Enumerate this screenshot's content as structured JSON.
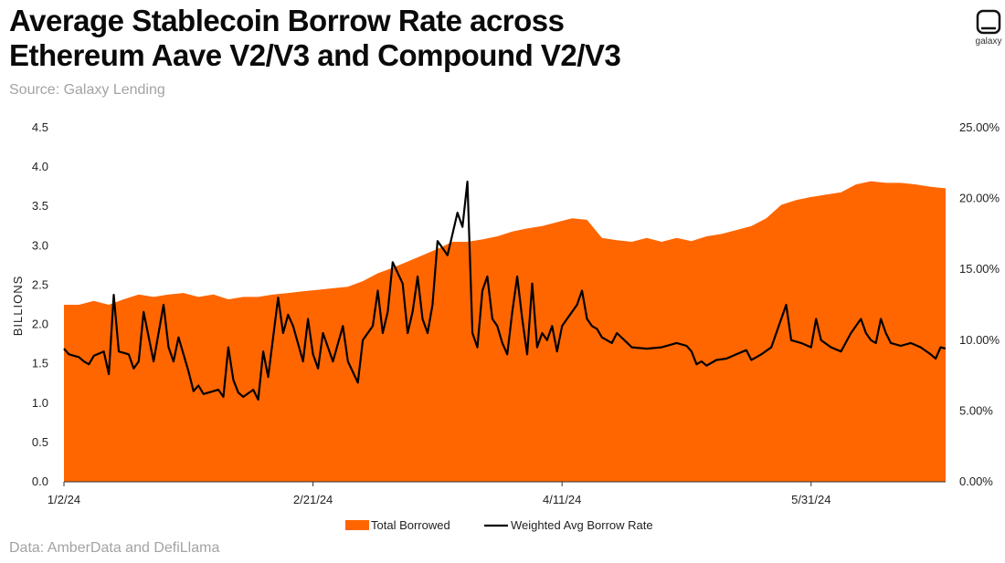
{
  "header": {
    "title_line1": "Average Stablecoin Borrow Rate across",
    "title_line2": "Ethereum Aave V2/V3 and Compound V2/V3",
    "subtitle": "Source: Galaxy Lending"
  },
  "logo": {
    "text": "galaxy"
  },
  "footer": {
    "text": "Data: AmberData and DefiLlama"
  },
  "colors": {
    "area": "#ff6600",
    "line": "#000000",
    "axis": "#222222"
  },
  "chart_data": {
    "type": "area",
    "title": "Average Stablecoin Borrow Rate across Ethereum Aave V2/V3 and Compound V2/V3",
    "ylabel": "BILLIONS",
    "ylim": [
      0,
      4.5
    ],
    "y2lim": [
      0,
      25
    ],
    "yticks": [
      "0.0",
      "0.5",
      "1.0",
      "1.5",
      "2.0",
      "2.5",
      "3.0",
      "3.5",
      "4.0",
      "4.5"
    ],
    "y2ticks": [
      "0.00%",
      "5.00%",
      "10.00%",
      "15.00%",
      "20.00%",
      "25.00%"
    ],
    "xticks": [
      "1/2/24",
      "2/21/24",
      "4/11/24",
      "5/31/24"
    ],
    "x_start": "2024-01-02",
    "x_end": "2024-06-27",
    "legend_position": "bottom",
    "series": [
      {
        "name": "Total Borrowed",
        "kind": "area",
        "axis": "left",
        "points": [
          [
            "2024-01-02",
            2.25
          ],
          [
            "2024-01-05",
            2.25
          ],
          [
            "2024-01-08",
            2.3
          ],
          [
            "2024-01-11",
            2.25
          ],
          [
            "2024-01-14",
            2.32
          ],
          [
            "2024-01-17",
            2.38
          ],
          [
            "2024-01-20",
            2.35
          ],
          [
            "2024-01-23",
            2.38
          ],
          [
            "2024-01-26",
            2.4
          ],
          [
            "2024-01-29",
            2.35
          ],
          [
            "2024-02-01",
            2.38
          ],
          [
            "2024-02-04",
            2.32
          ],
          [
            "2024-02-07",
            2.35
          ],
          [
            "2024-02-10",
            2.35
          ],
          [
            "2024-02-13",
            2.38
          ],
          [
            "2024-02-16",
            2.4
          ],
          [
            "2024-02-19",
            2.42
          ],
          [
            "2024-02-22",
            2.44
          ],
          [
            "2024-02-25",
            2.46
          ],
          [
            "2024-02-28",
            2.48
          ],
          [
            "2024-03-02",
            2.55
          ],
          [
            "2024-03-05",
            2.65
          ],
          [
            "2024-03-08",
            2.72
          ],
          [
            "2024-03-11",
            2.8
          ],
          [
            "2024-03-14",
            2.88
          ],
          [
            "2024-03-17",
            2.96
          ],
          [
            "2024-03-20",
            3.05
          ],
          [
            "2024-03-23",
            3.05
          ],
          [
            "2024-03-26",
            3.08
          ],
          [
            "2024-03-29",
            3.12
          ],
          [
            "2024-04-01",
            3.18
          ],
          [
            "2024-04-04",
            3.22
          ],
          [
            "2024-04-07",
            3.25
          ],
          [
            "2024-04-10",
            3.3
          ],
          [
            "2024-04-13",
            3.35
          ],
          [
            "2024-04-16",
            3.33
          ],
          [
            "2024-04-19",
            3.1
          ],
          [
            "2024-04-22",
            3.07
          ],
          [
            "2024-04-25",
            3.05
          ],
          [
            "2024-04-28",
            3.1
          ],
          [
            "2024-05-01",
            3.05
          ],
          [
            "2024-05-04",
            3.1
          ],
          [
            "2024-05-07",
            3.06
          ],
          [
            "2024-05-10",
            3.12
          ],
          [
            "2024-05-13",
            3.15
          ],
          [
            "2024-05-16",
            3.2
          ],
          [
            "2024-05-19",
            3.25
          ],
          [
            "2024-05-22",
            3.35
          ],
          [
            "2024-05-25",
            3.52
          ],
          [
            "2024-05-28",
            3.58
          ],
          [
            "2024-05-31",
            3.62
          ],
          [
            "2024-06-03",
            3.65
          ],
          [
            "2024-06-06",
            3.68
          ],
          [
            "2024-06-09",
            3.78
          ],
          [
            "2024-06-12",
            3.82
          ],
          [
            "2024-06-15",
            3.8
          ],
          [
            "2024-06-18",
            3.8
          ],
          [
            "2024-06-21",
            3.78
          ],
          [
            "2024-06-24",
            3.75
          ],
          [
            "2024-06-27",
            3.73
          ]
        ]
      },
      {
        "name": "Weighted Avg Borrow Rate",
        "kind": "line",
        "axis": "right",
        "points": [
          [
            "2024-01-02",
            9.4
          ],
          [
            "2024-01-03",
            9.0
          ],
          [
            "2024-01-05",
            8.8
          ],
          [
            "2024-01-06",
            8.5
          ],
          [
            "2024-01-07",
            8.3
          ],
          [
            "2024-01-08",
            8.9
          ],
          [
            "2024-01-10",
            9.2
          ],
          [
            "2024-01-11",
            7.6
          ],
          [
            "2024-01-12",
            13.2
          ],
          [
            "2024-01-13",
            9.2
          ],
          [
            "2024-01-15",
            9.0
          ],
          [
            "2024-01-16",
            8.0
          ],
          [
            "2024-01-17",
            8.5
          ],
          [
            "2024-01-18",
            12.0
          ],
          [
            "2024-01-20",
            8.5
          ],
          [
            "2024-01-22",
            12.5
          ],
          [
            "2024-01-23",
            9.5
          ],
          [
            "2024-01-24",
            8.5
          ],
          [
            "2024-01-25",
            10.2
          ],
          [
            "2024-01-27",
            7.8
          ],
          [
            "2024-01-28",
            6.4
          ],
          [
            "2024-01-29",
            6.8
          ],
          [
            "2024-01-30",
            6.2
          ],
          [
            "2024-02-01",
            6.4
          ],
          [
            "2024-02-02",
            6.5
          ],
          [
            "2024-02-03",
            6.0
          ],
          [
            "2024-02-04",
            9.5
          ],
          [
            "2024-02-05",
            7.2
          ],
          [
            "2024-02-06",
            6.3
          ],
          [
            "2024-02-07",
            6.0
          ],
          [
            "2024-02-09",
            6.5
          ],
          [
            "2024-02-10",
            5.8
          ],
          [
            "2024-02-11",
            9.2
          ],
          [
            "2024-02-12",
            7.4
          ],
          [
            "2024-02-14",
            13.0
          ],
          [
            "2024-02-15",
            10.5
          ],
          [
            "2024-02-16",
            11.8
          ],
          [
            "2024-02-17",
            11.0
          ],
          [
            "2024-02-19",
            8.5
          ],
          [
            "2024-02-20",
            11.5
          ],
          [
            "2024-02-21",
            9.0
          ],
          [
            "2024-02-22",
            8.0
          ],
          [
            "2024-02-23",
            10.5
          ],
          [
            "2024-02-25",
            8.5
          ],
          [
            "2024-02-27",
            11.0
          ],
          [
            "2024-02-28",
            8.5
          ],
          [
            "2024-03-01",
            7.0
          ],
          [
            "2024-03-02",
            10.0
          ],
          [
            "2024-03-04",
            11.0
          ],
          [
            "2024-03-05",
            13.5
          ],
          [
            "2024-03-06",
            10.5
          ],
          [
            "2024-03-07",
            12.0
          ],
          [
            "2024-03-08",
            15.5
          ],
          [
            "2024-03-10",
            14.0
          ],
          [
            "2024-03-11",
            10.5
          ],
          [
            "2024-03-12",
            12.0
          ],
          [
            "2024-03-13",
            14.5
          ],
          [
            "2024-03-14",
            11.5
          ],
          [
            "2024-03-15",
            10.5
          ],
          [
            "2024-03-16",
            12.5
          ],
          [
            "2024-03-17",
            17.0
          ],
          [
            "2024-03-18",
            16.5
          ],
          [
            "2024-03-19",
            16.0
          ],
          [
            "2024-03-20",
            17.5
          ],
          [
            "2024-03-21",
            19.0
          ],
          [
            "2024-03-22",
            18.0
          ],
          [
            "2024-03-23",
            21.2
          ],
          [
            "2024-03-24",
            10.5
          ],
          [
            "2024-03-25",
            9.5
          ],
          [
            "2024-03-26",
            13.5
          ],
          [
            "2024-03-27",
            14.5
          ],
          [
            "2024-03-28",
            11.5
          ],
          [
            "2024-03-29",
            11.0
          ],
          [
            "2024-03-30",
            9.8
          ],
          [
            "2024-03-31",
            9.0
          ],
          [
            "2024-04-01",
            12.0
          ],
          [
            "2024-04-02",
            14.5
          ],
          [
            "2024-04-03",
            11.5
          ],
          [
            "2024-04-04",
            9.0
          ],
          [
            "2024-04-05",
            14.0
          ],
          [
            "2024-04-06",
            9.5
          ],
          [
            "2024-04-07",
            10.5
          ],
          [
            "2024-04-08",
            10.0
          ],
          [
            "2024-04-09",
            11.0
          ],
          [
            "2024-04-10",
            9.2
          ],
          [
            "2024-04-11",
            11.0
          ],
          [
            "2024-04-12",
            11.5
          ],
          [
            "2024-04-13",
            12.0
          ],
          [
            "2024-04-14",
            12.5
          ],
          [
            "2024-04-15",
            13.5
          ],
          [
            "2024-04-16",
            11.5
          ],
          [
            "2024-04-17",
            11.0
          ],
          [
            "2024-04-18",
            10.8
          ],
          [
            "2024-04-19",
            10.2
          ],
          [
            "2024-04-20",
            10.0
          ],
          [
            "2024-04-21",
            9.8
          ],
          [
            "2024-04-22",
            10.5
          ],
          [
            "2024-04-25",
            9.5
          ],
          [
            "2024-04-28",
            9.4
          ],
          [
            "2024-05-01",
            9.5
          ],
          [
            "2024-05-04",
            9.8
          ],
          [
            "2024-05-06",
            9.6
          ],
          [
            "2024-05-07",
            9.2
          ],
          [
            "2024-05-08",
            8.3
          ],
          [
            "2024-05-09",
            8.5
          ],
          [
            "2024-05-10",
            8.2
          ],
          [
            "2024-05-12",
            8.6
          ],
          [
            "2024-05-14",
            8.7
          ],
          [
            "2024-05-16",
            9.0
          ],
          [
            "2024-05-18",
            9.3
          ],
          [
            "2024-05-19",
            8.6
          ],
          [
            "2024-05-21",
            9.0
          ],
          [
            "2024-05-23",
            9.5
          ],
          [
            "2024-05-25",
            11.5
          ],
          [
            "2024-05-26",
            12.5
          ],
          [
            "2024-05-27",
            10.0
          ],
          [
            "2024-05-29",
            9.8
          ],
          [
            "2024-05-31",
            9.5
          ],
          [
            "2024-06-01",
            11.5
          ],
          [
            "2024-06-02",
            10.0
          ],
          [
            "2024-06-04",
            9.5
          ],
          [
            "2024-06-06",
            9.2
          ],
          [
            "2024-06-08",
            10.5
          ],
          [
            "2024-06-10",
            11.5
          ],
          [
            "2024-06-11",
            10.5
          ],
          [
            "2024-06-12",
            10.0
          ],
          [
            "2024-06-13",
            9.8
          ],
          [
            "2024-06-14",
            11.5
          ],
          [
            "2024-06-15",
            10.5
          ],
          [
            "2024-06-16",
            9.8
          ],
          [
            "2024-06-18",
            9.6
          ],
          [
            "2024-06-20",
            9.8
          ],
          [
            "2024-06-22",
            9.5
          ],
          [
            "2024-06-24",
            9.0
          ],
          [
            "2024-06-25",
            8.7
          ],
          [
            "2024-06-26",
            9.5
          ],
          [
            "2024-06-27",
            9.4
          ]
        ]
      }
    ]
  }
}
